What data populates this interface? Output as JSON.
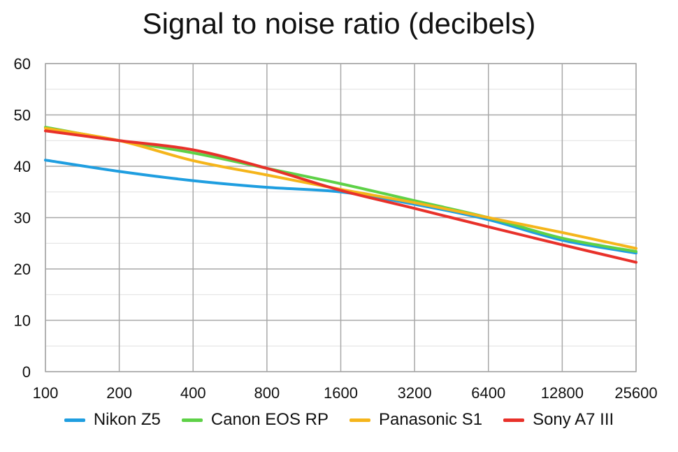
{
  "chart_data": {
    "type": "line",
    "title": "Signal to noise ratio (decibels)",
    "xlabel": "",
    "ylabel": "",
    "categories": [
      "100",
      "200",
      "400",
      "800",
      "1600",
      "3200",
      "6400",
      "12800",
      "25600"
    ],
    "ylim": [
      0,
      60
    ],
    "yticks": [
      0,
      10,
      20,
      30,
      40,
      50,
      60
    ],
    "grid": true,
    "legend_position": "bottom",
    "series": [
      {
        "name": "Nikon Z5",
        "color": "#1f9ee0",
        "values": [
          41.2,
          39.0,
          37.2,
          35.9,
          35.0,
          32.6,
          29.6,
          25.6,
          23.1
        ]
      },
      {
        "name": "Canon EOS RP",
        "color": "#5ed147",
        "values": [
          47.6,
          45.0,
          42.6,
          39.6,
          36.6,
          33.3,
          30.0,
          26.0,
          23.4
        ]
      },
      {
        "name": "Panasonic S1",
        "color": "#f5b51b",
        "values": [
          47.4,
          45.0,
          41.1,
          38.3,
          35.5,
          32.9,
          30.0,
          27.1,
          24.0
        ]
      },
      {
        "name": "Sony A7 III",
        "color": "#e8312a",
        "values": [
          46.9,
          45.0,
          43.2,
          39.6,
          35.3,
          31.8,
          28.2,
          24.7,
          21.3
        ]
      }
    ]
  }
}
